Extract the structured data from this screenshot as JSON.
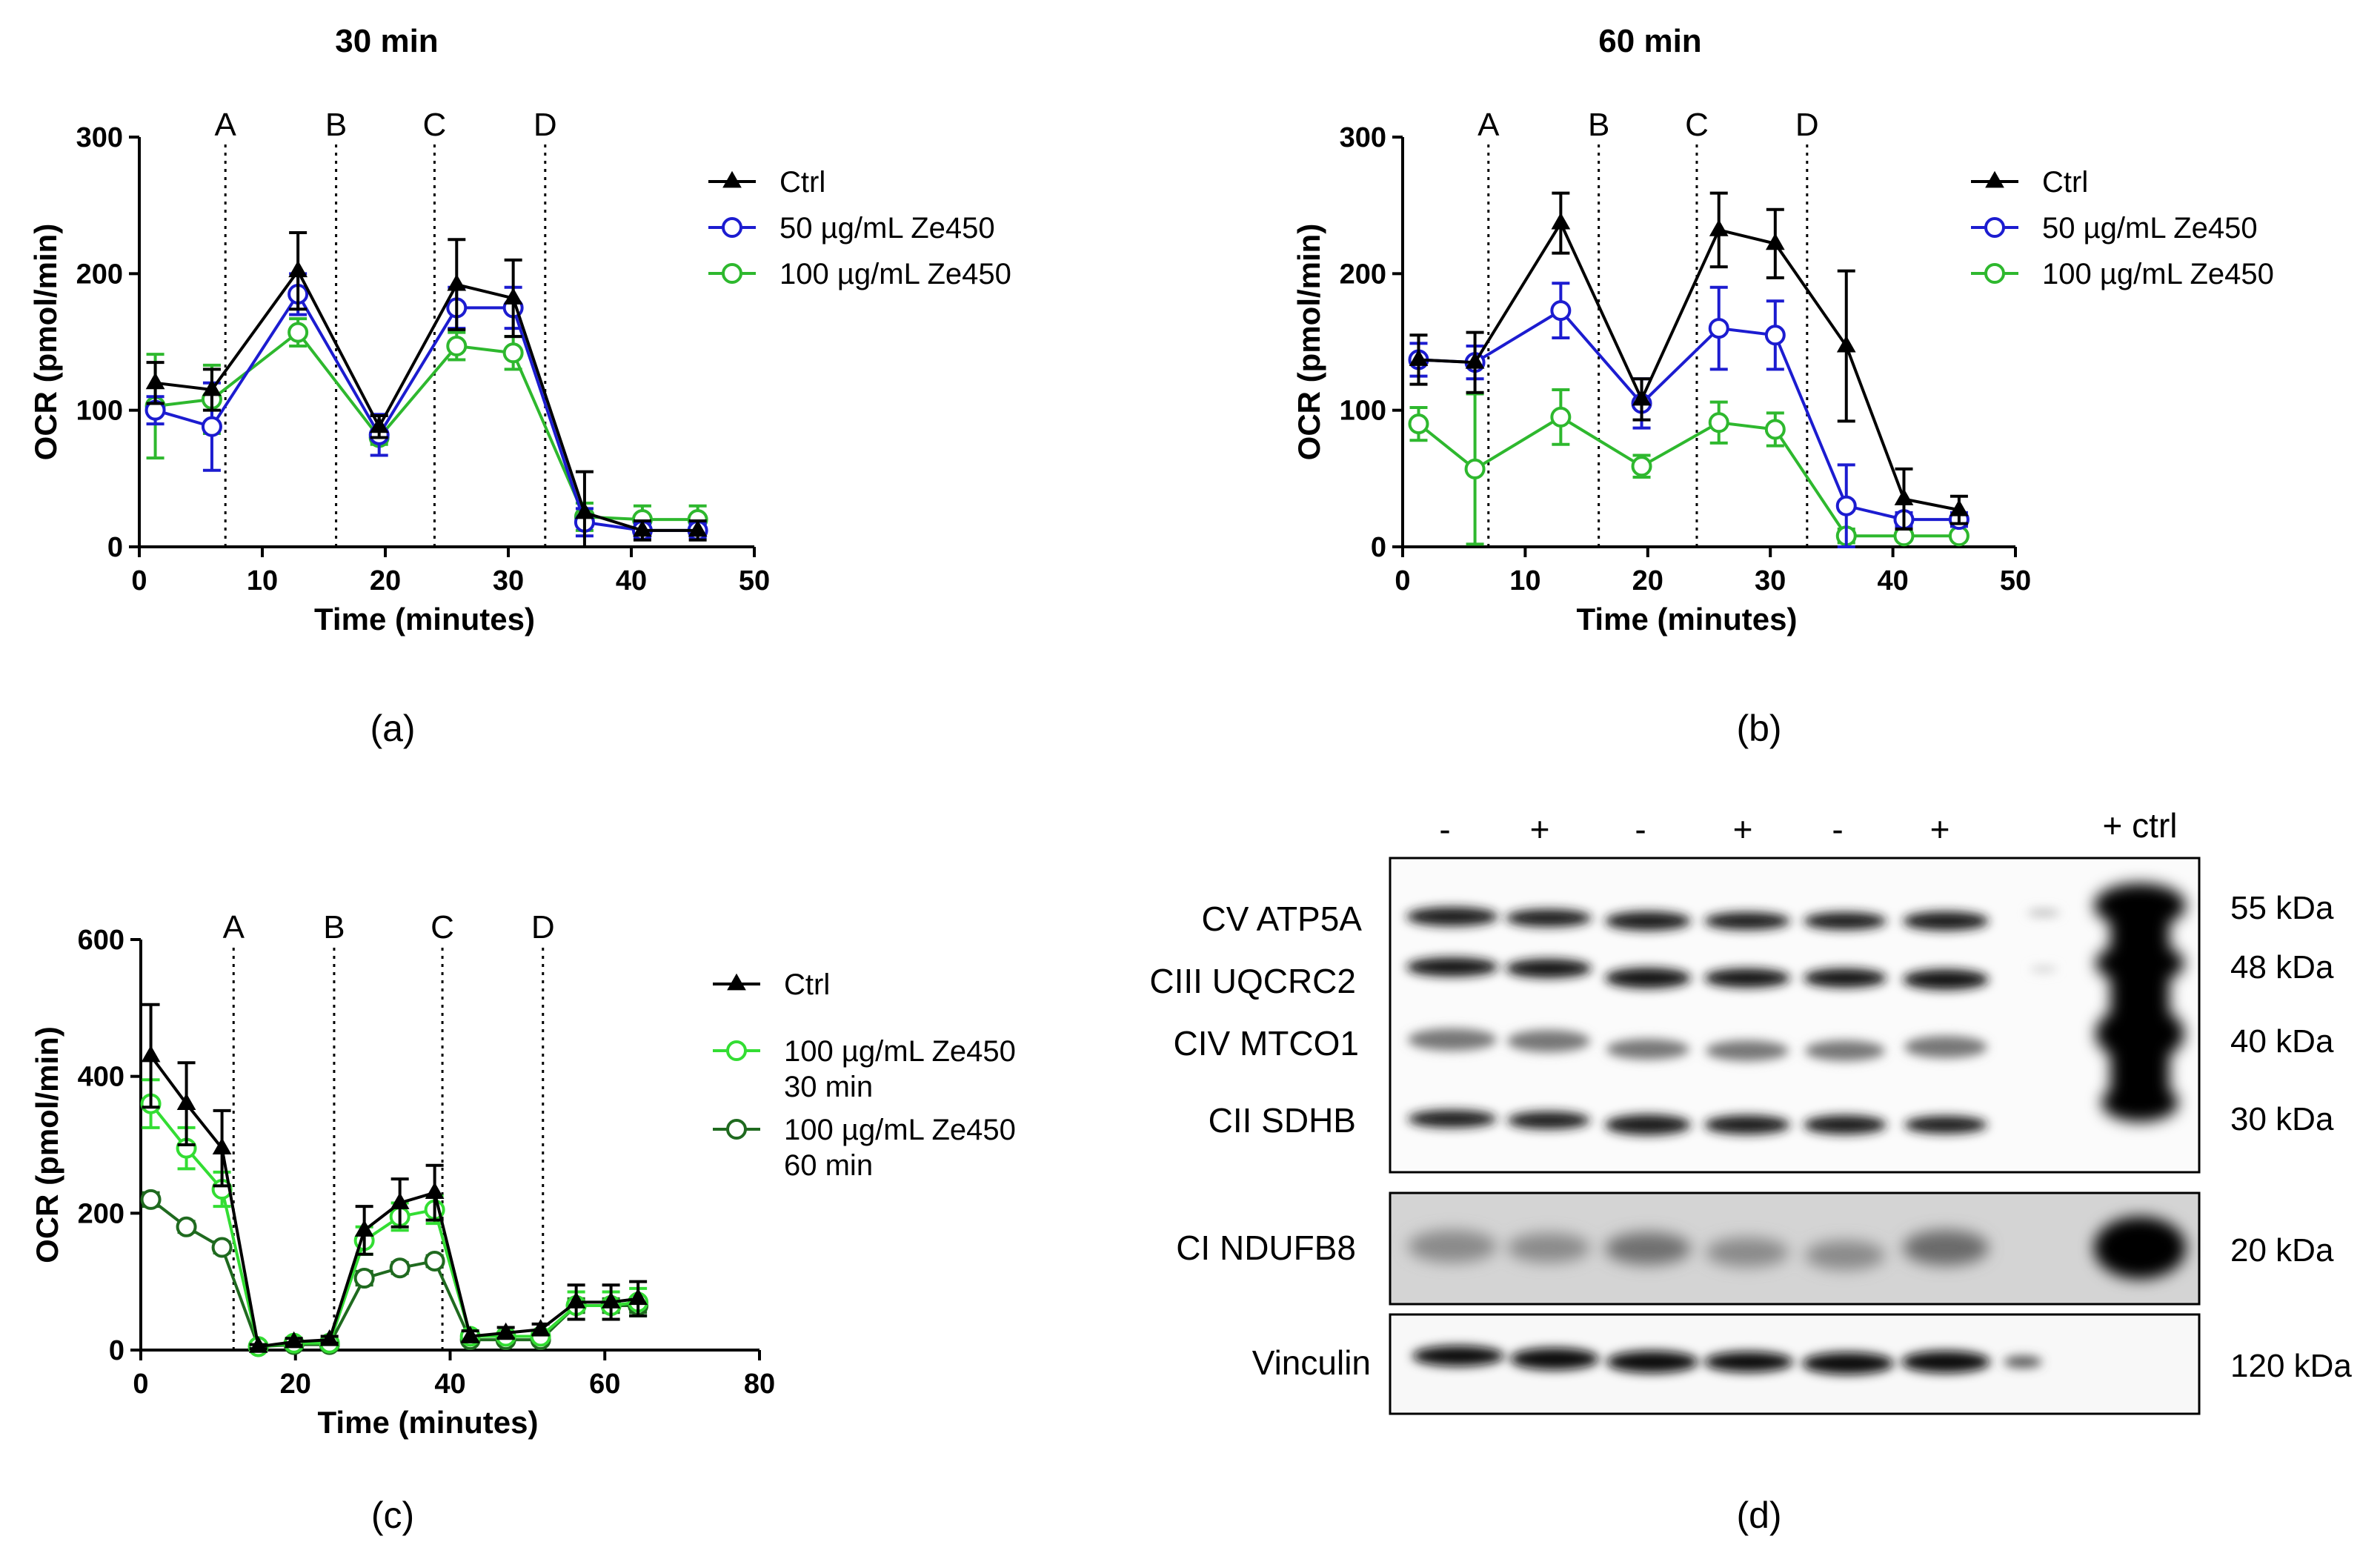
{
  "chart_data": [
    {
      "type": "line",
      "panel_label": "(a)",
      "title": "30 min",
      "xlabel": "Time (minutes)",
      "ylabel": "OCR (pmol/min)",
      "xlim": [
        0,
        50
      ],
      "ylim": [
        0,
        300
      ],
      "xticks": [
        0,
        10,
        20,
        30,
        40,
        50
      ],
      "yticks": [
        0,
        100,
        200,
        300
      ],
      "injections": [
        {
          "label": "A",
          "x": 7
        },
        {
          "label": "B",
          "x": 16
        },
        {
          "label": "C",
          "x": 24
        },
        {
          "label": "D",
          "x": 33
        }
      ],
      "legend_position": "right",
      "series": [
        {
          "name": "Ctrl",
          "color": "#000000",
          "marker": "triangle",
          "x": [
            1.3,
            5.9,
            12.9,
            19.5,
            25.8,
            30.4,
            36.2,
            40.9,
            45.4
          ],
          "y": [
            120,
            115,
            202,
            88,
            192,
            182,
            25,
            12,
            12
          ],
          "err": [
            15,
            15,
            28,
            8,
            33,
            28,
            30,
            7,
            7
          ]
        },
        {
          "name": "50 µg/mL Ze450",
          "color": "#1c1cd0",
          "marker": "circle",
          "x": [
            1.3,
            5.9,
            12.9,
            19.5,
            25.8,
            30.4,
            36.2,
            40.9,
            45.4
          ],
          "y": [
            100,
            88,
            185,
            82,
            175,
            175,
            18,
            12,
            12
          ],
          "err": [
            10,
            32,
            15,
            15,
            15,
            15,
            10,
            5,
            5
          ]
        },
        {
          "name": "100 µg/mL Ze450",
          "color": "#2eb82e",
          "marker": "circle",
          "x": [
            1.3,
            5.9,
            12.9,
            19.5,
            25.8,
            30.4,
            36.2,
            40.9,
            45.4
          ],
          "y": [
            103,
            108,
            157,
            80,
            147,
            142,
            22,
            20,
            20
          ],
          "err": [
            38,
            25,
            10,
            5,
            10,
            12,
            10,
            10,
            10
          ]
        }
      ]
    },
    {
      "type": "line",
      "panel_label": "(b)",
      "title": "60 min",
      "xlabel": "Time (minutes)",
      "ylabel": "OCR (pmol/min)",
      "xlim": [
        0,
        50
      ],
      "ylim": [
        0,
        300
      ],
      "xticks": [
        0,
        10,
        20,
        30,
        40,
        50
      ],
      "yticks": [
        0,
        100,
        200,
        300
      ],
      "injections": [
        {
          "label": "A",
          "x": 7
        },
        {
          "label": "B",
          "x": 16
        },
        {
          "label": "C",
          "x": 24
        },
        {
          "label": "D",
          "x": 33
        }
      ],
      "legend_position": "right",
      "series": [
        {
          "name": "Ctrl",
          "color": "#000000",
          "marker": "triangle",
          "x": [
            1.3,
            5.9,
            12.9,
            19.5,
            25.8,
            30.4,
            36.2,
            40.9,
            45.4
          ],
          "y": [
            137,
            135,
            237,
            108,
            232,
            222,
            147,
            35,
            27
          ],
          "err": [
            18,
            22,
            22,
            15,
            27,
            25,
            55,
            22,
            10
          ]
        },
        {
          "name": "50 µg/mL Ze450",
          "color": "#1c1cd0",
          "marker": "circle",
          "x": [
            1.3,
            5.9,
            12.9,
            19.5,
            25.8,
            30.4,
            36.2,
            40.9,
            45.4
          ],
          "y": [
            137,
            135,
            173,
            105,
            160,
            155,
            30,
            20,
            20
          ],
          "err": [
            12,
            12,
            20,
            18,
            30,
            25,
            30,
            5,
            5
          ]
        },
        {
          "name": "100 µg/mL Ze450",
          "color": "#2eb82e",
          "marker": "circle",
          "x": [
            1.3,
            5.9,
            12.9,
            19.5,
            25.8,
            30.4,
            36.2,
            40.9,
            45.4
          ],
          "y": [
            90,
            57,
            95,
            59,
            91,
            86,
            8,
            8,
            8
          ],
          "err": [
            12,
            55,
            20,
            8,
            15,
            12,
            5,
            3,
            3
          ]
        }
      ]
    },
    {
      "type": "line",
      "panel_label": "(c)",
      "xlabel": "Time (minutes)",
      "ylabel": "OCR (pmol/min)",
      "xlim": [
        0,
        80
      ],
      "ylim": [
        0,
        600
      ],
      "xticks": [
        0,
        20,
        40,
        60,
        80
      ],
      "yticks": [
        0,
        200,
        400,
        600
      ],
      "injections": [
        {
          "label": "A",
          "x": 12
        },
        {
          "label": "B",
          "x": 25
        },
        {
          "label": "C",
          "x": 39
        },
        {
          "label": "D",
          "x": 52
        }
      ],
      "legend_position": "right",
      "series": [
        {
          "name": "Ctrl",
          "color": "#000000",
          "marker": "triangle",
          "x": [
            1.3,
            5.9,
            10.5,
            15.2,
            19.8,
            24.4,
            28.9,
            33.5,
            38.0,
            42.6,
            47.2,
            51.7,
            56.3,
            60.8,
            64.3
          ],
          "y": [
            430,
            360,
            295,
            5,
            12,
            15,
            175,
            215,
            230,
            20,
            25,
            30,
            70,
            70,
            75
          ],
          "err": [
            75,
            60,
            55,
            3,
            5,
            5,
            35,
            35,
            40,
            8,
            8,
            8,
            25,
            25,
            25
          ]
        },
        {
          "name": "100 µg/mL Ze450 30 min",
          "name_lines": [
            "100 µg/mL Ze450",
            "30 min"
          ],
          "color": "#33dd33",
          "marker": "circle",
          "x": [
            1.3,
            5.9,
            10.5,
            15.2,
            19.8,
            24.4,
            28.9,
            33.5,
            38.0,
            42.6,
            47.2,
            51.7,
            56.3,
            60.8,
            64.3
          ],
          "y": [
            360,
            295,
            235,
            5,
            10,
            10,
            160,
            195,
            205,
            20,
            20,
            20,
            65,
            65,
            70
          ],
          "err": [
            35,
            30,
            25,
            3,
            4,
            4,
            20,
            20,
            20,
            6,
            6,
            6,
            20,
            20,
            20
          ]
        },
        {
          "name": "100 µg/mL Ze450 60 min",
          "name_lines": [
            "100 µg/mL Ze450",
            "60 min"
          ],
          "color": "#1f6a1f",
          "marker": "circle",
          "x": [
            1.3,
            5.9,
            10.5,
            15.2,
            19.8,
            24.4,
            28.9,
            33.5,
            38.0,
            42.6,
            47.2,
            51.7,
            56.3,
            60.8,
            64.3
          ],
          "y": [
            220,
            180,
            150,
            5,
            8,
            8,
            105,
            120,
            130,
            15,
            15,
            15,
            65,
            65,
            65
          ],
          "err": [
            10,
            8,
            8,
            2,
            3,
            3,
            10,
            8,
            8,
            5,
            5,
            5,
            10,
            10,
            10
          ]
        }
      ]
    },
    {
      "type": "blot",
      "panel_label": "(d)",
      "lane_labels": [
        "-",
        "+",
        "-",
        "+",
        "-",
        "+",
        "",
        "+ ctrl"
      ],
      "row_labels": [
        "CV ATP5A",
        "CIII UQCRC2",
        "CIV MTCO1",
        "CII SDHB",
        "CI NDUFB8",
        "Vinculin"
      ],
      "kda_labels": [
        "55 kDa",
        "48 kDa",
        "40 kDa",
        "30 kDa",
        "20 kDa",
        "120 kDa"
      ]
    }
  ]
}
